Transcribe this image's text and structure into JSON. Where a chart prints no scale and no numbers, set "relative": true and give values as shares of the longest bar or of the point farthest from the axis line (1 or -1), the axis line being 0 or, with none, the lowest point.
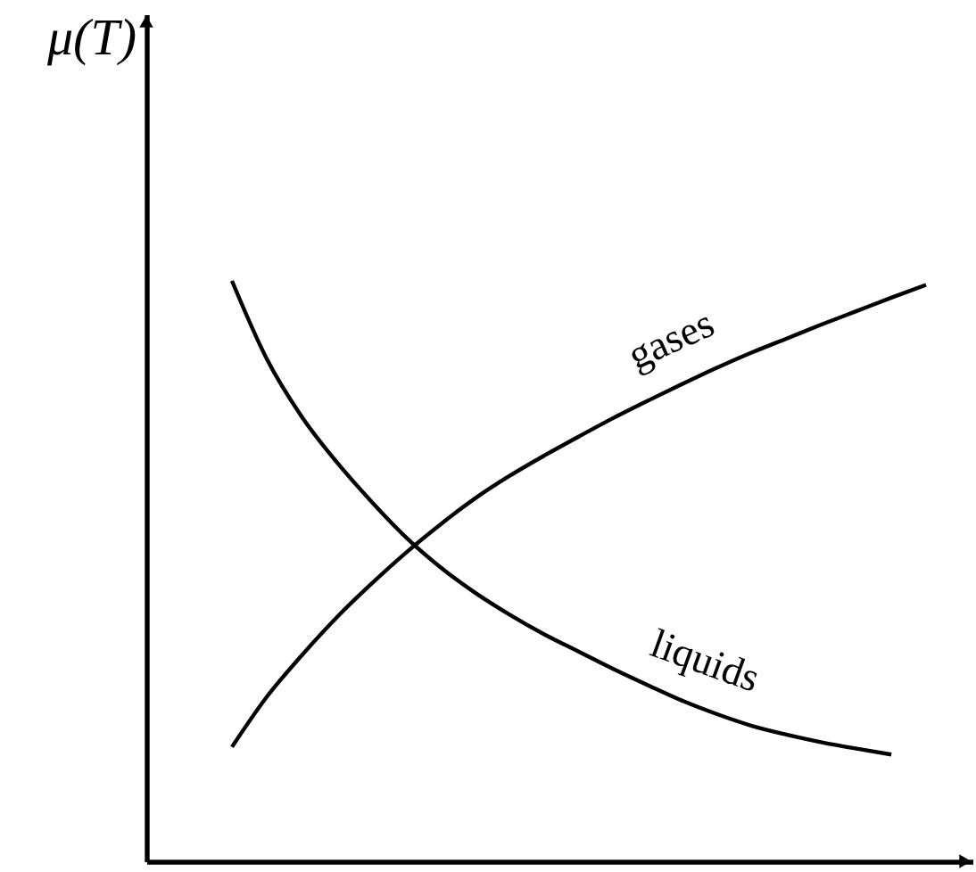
{
  "chart_data": {
    "type": "line",
    "ylabel": "μ(T)",
    "relative": true,
    "tick_labels": false,
    "line_style": "solid",
    "categories": [
      null,
      null,
      null,
      null,
      null,
      null,
      null,
      null,
      null,
      null,
      null,
      null,
      null,
      null,
      null,
      null,
      null,
      null,
      null,
      null,
      null
    ],
    "series": [
      {
        "name": "gases",
        "color": "#000000",
        "values": [
          0.197,
          0.283,
          0.354,
          0.419,
          0.477,
          0.531,
          0.58,
          0.625,
          0.664,
          0.699,
          0.732,
          0.764,
          0.794,
          0.823,
          0.851,
          0.877,
          0.901,
          0.925,
          0.948,
          0.971,
          0.993
        ]
      },
      {
        "name": "liquids",
        "color": "#000000",
        "values": [
          1.0,
          0.866,
          0.767,
          0.689,
          0.621,
          0.559,
          0.507,
          0.463,
          0.425,
          0.391,
          0.361,
          0.331,
          0.303,
          0.276,
          0.253,
          0.233,
          0.218,
          0.205,
          0.194,
          0.184,
          null
        ]
      }
    ]
  }
}
